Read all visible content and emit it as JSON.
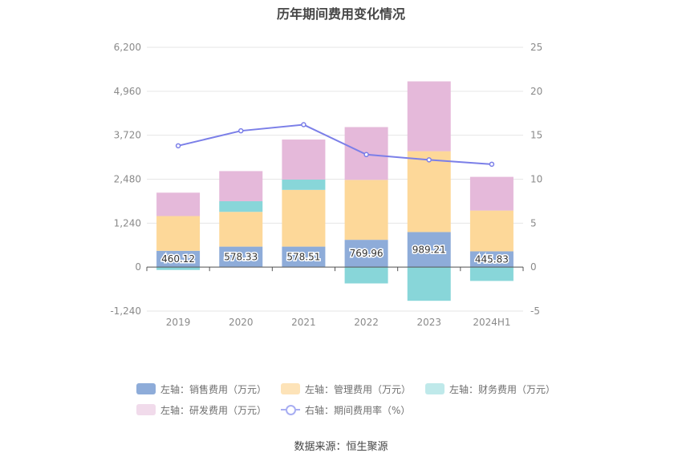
{
  "chart_data": {
    "type": "bar",
    "title": "历年期间费用变化情况",
    "categories": [
      "2019",
      "2020",
      "2021",
      "2022",
      "2023",
      "2024H1"
    ],
    "left_axis": {
      "ticks": [
        "6,200",
        "4,960",
        "3,720",
        "2,480",
        "1,240",
        "0",
        "-1,240"
      ],
      "ylim": [
        -1240,
        6200
      ]
    },
    "right_axis": {
      "ticks": [
        "25",
        "20",
        "15",
        "10",
        "5",
        "0",
        "-5"
      ],
      "ylim": [
        -5,
        25
      ]
    },
    "series": [
      {
        "name": "左轴：销售费用（万元）",
        "axis": "left",
        "color": "#8eacd9",
        "values": [
          460.12,
          578.33,
          578.51,
          769.96,
          989.21,
          445.83
        ],
        "labels": [
          "460.12",
          "578.33",
          "578.51",
          "769.96",
          "989.21",
          "445.83"
        ]
      },
      {
        "name": "左轴：管理费用（万元）",
        "axis": "left",
        "color": "#fdd899",
        "values": [
          980,
          980,
          1600,
          1690,
          2280,
          1150
        ]
      },
      {
        "name": "左轴：财务费用（万元）",
        "axis": "left",
        "color": "#88d6d9",
        "values": [
          -80,
          300,
          290,
          -460,
          -950,
          -390
        ]
      },
      {
        "name": "左轴：研发费用（万元）",
        "axis": "left",
        "color": "#e5b9da",
        "values": [
          660,
          850,
          1130,
          1490,
          1970,
          950
        ]
      },
      {
        "name": "右轴：期间费用率（%）",
        "axis": "right",
        "type": "line",
        "color": "#7b7fe8",
        "values": [
          13.8,
          15.5,
          16.2,
          12.8,
          12.2,
          11.7
        ]
      }
    ],
    "grid": true,
    "legend_position": "bottom"
  },
  "source": "数据来源：恒生聚源"
}
